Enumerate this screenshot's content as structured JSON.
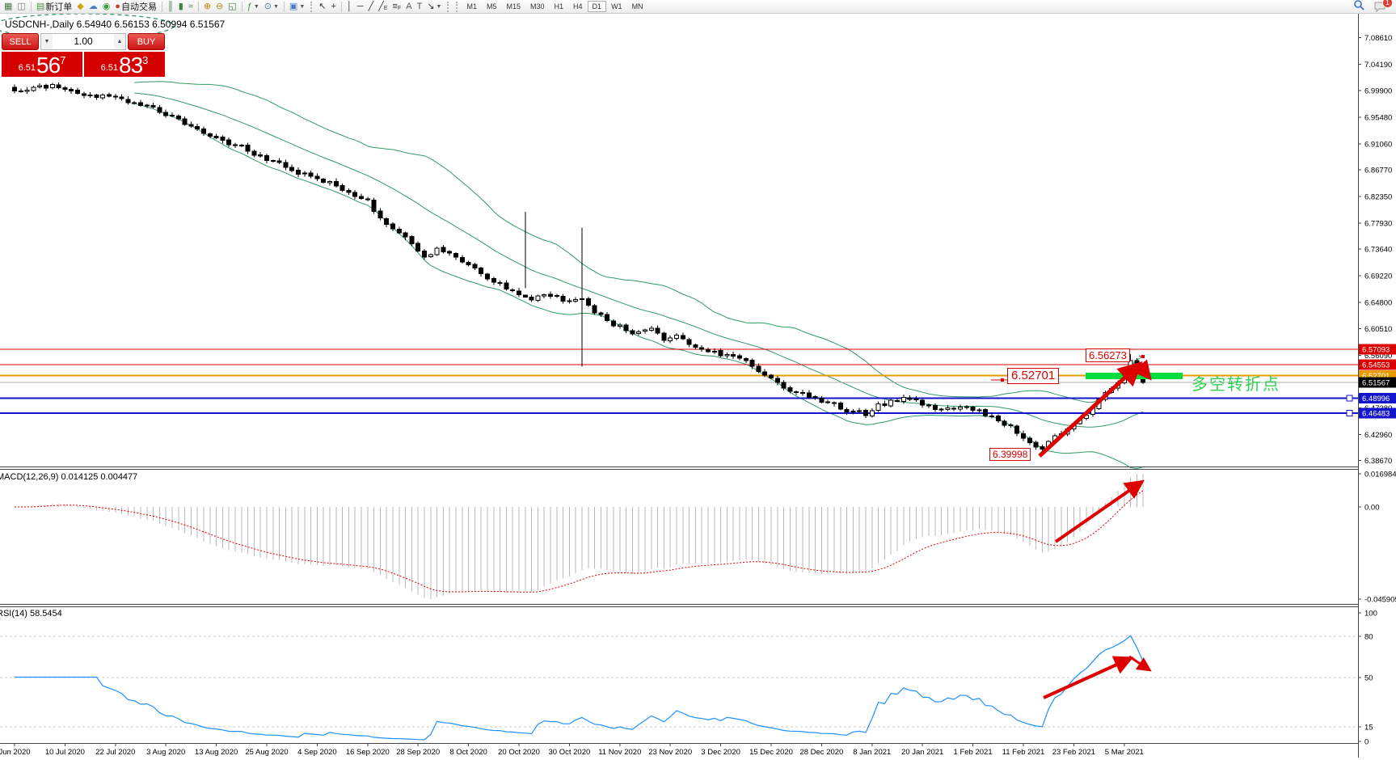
{
  "toolbar": {
    "new_order_label": "新订单",
    "algo_trading_label": "自动交易",
    "notification_count": "1",
    "timeframes": [
      "M1",
      "M5",
      "M15",
      "M30",
      "H1",
      "H4",
      "D1",
      "W1",
      "MN"
    ],
    "active_timeframe": "D1",
    "items": [
      {
        "name": "new-chart",
        "glyph": "▦",
        "color": "#4a7a4a"
      },
      {
        "name": "chart-preview",
        "glyph": "◫",
        "color": "#777777"
      },
      {
        "type": "sep"
      },
      {
        "name": "new-order",
        "glyph": "▤",
        "color": "#3f8f3f",
        "label_key": "new_order_label"
      },
      {
        "name": "depth-of-market",
        "glyph": "◆",
        "color": "#cfa018"
      },
      {
        "name": "virtual-hosting",
        "glyph": "☁",
        "color": "#4a7ac0"
      },
      {
        "name": "signals",
        "glyph": "◉",
        "color": "#38a038"
      },
      {
        "name": "algo-trading",
        "glyph": "●",
        "color": "#c04038",
        "label_key": "algo_trading_label"
      },
      {
        "type": "sep"
      },
      {
        "name": "bars-chart",
        "glyph": "║",
        "color": "#3f7f3f"
      },
      {
        "name": "candles-chart",
        "glyph": "▮",
        "color": "#3f7f3f"
      },
      {
        "name": "line-chart",
        "glyph": "≈",
        "color": "#3f7f3f"
      },
      {
        "type": "sep"
      },
      {
        "name": "zoom-in",
        "glyph": "⊕",
        "color": "#b8860b"
      },
      {
        "name": "zoom-out",
        "glyph": "⊖",
        "color": "#b8860b"
      },
      {
        "name": "tile-windows",
        "glyph": "◱",
        "color": "#3f7f3f"
      },
      {
        "type": "sep"
      },
      {
        "name": "indicators-add",
        "glyph": "ƒ",
        "color": "#3f8f3f",
        "dropdown": true
      },
      {
        "name": "period-clock",
        "glyph": "⊙",
        "color": "#4a7ac0",
        "dropdown": true
      },
      {
        "type": "sep"
      },
      {
        "name": "chart-template",
        "glyph": "▣",
        "color": "#4a7ac0",
        "dropdown": true
      },
      {
        "type": "handle"
      },
      {
        "name": "cursor",
        "glyph": "↖",
        "color": "#333333"
      },
      {
        "name": "crosshair",
        "glyph": "+",
        "color": "#333333"
      },
      {
        "type": "sep"
      },
      {
        "name": "vertical-line",
        "glyph": "│",
        "color": "#333333"
      },
      {
        "name": "horizontal-line",
        "glyph": "─",
        "color": "#333333"
      },
      {
        "name": "trend-line",
        "glyph": "╱",
        "color": "#333333"
      },
      {
        "name": "equidistant-channel",
        "glyph": "╱",
        "color": "#333333",
        "sub": "E"
      },
      {
        "name": "fibonacci",
        "glyph": "≡",
        "color": "#333333",
        "sub": "F"
      },
      {
        "name": "text",
        "glyph": "A",
        "color": "#555555"
      },
      {
        "name": "text-label",
        "glyph": "T",
        "color": "#555555"
      },
      {
        "name": "objects-arrows",
        "glyph": "↘",
        "color": "#333333",
        "dropdown": true
      },
      {
        "type": "handle"
      }
    ]
  },
  "trade_panel": {
    "sell_label": "SELL",
    "buy_label": "BUY",
    "volume": "1.00",
    "down_glyph": "▼",
    "up_glyph": "▲",
    "sell_price_small": "6.51",
    "sell_price_big": "56",
    "sell_price_sup": "7",
    "buy_price_small": "6.51",
    "buy_price_big": "83",
    "buy_price_sup": "3"
  },
  "chart": {
    "title": "USDCNH-,Daily  6.54940 6.56153 6.50994 6.51567",
    "macd_label": "MACD(12,26,9) 0.014125 0.004477",
    "rsi_label": "RSI(14) 58.5454"
  },
  "annotations": {
    "high_label": "6.56273",
    "pivot_label": "6.52701",
    "low_label": "6.39998",
    "pivot_text": "多空转折点",
    "annotation_red": "#dd0000",
    "lime_green": "#00dd3c"
  },
  "chart_data": {
    "type": "candlestick",
    "symbol": "USDCNH-",
    "period": "Daily",
    "current_ohlc": {
      "open": "6.54940",
      "high": "6.56153",
      "low": "6.50994",
      "close": "6.51567"
    },
    "bid": 6.51567,
    "candle_count": 180,
    "price_range": {
      "top": 7.095,
      "bottom": 6.3755
    },
    "anchors": [
      [
        0,
        6.998
      ],
      [
        2,
        6.999
      ],
      [
        6,
        7.008
      ],
      [
        10,
        6.993
      ],
      [
        15,
        6.987
      ],
      [
        19,
        6.979
      ],
      [
        23,
        6.964
      ],
      [
        27,
        6.943
      ],
      [
        32,
        6.92
      ],
      [
        36,
        6.905
      ],
      [
        40,
        6.884
      ],
      [
        44,
        6.869
      ],
      [
        47,
        6.854
      ],
      [
        50,
        6.846
      ],
      [
        53,
        6.832
      ],
      [
        56,
        6.817
      ],
      [
        58,
        6.787
      ],
      [
        61,
        6.766
      ],
      [
        63,
        6.743
      ],
      [
        65,
        6.722
      ],
      [
        67,
        6.737
      ],
      [
        69,
        6.729
      ],
      [
        71,
        6.714
      ],
      [
        73,
        6.707
      ],
      [
        75,
        6.691
      ],
      [
        77,
        6.678
      ],
      [
        80,
        6.662
      ],
      [
        82,
        6.655
      ],
      [
        85,
        6.662
      ],
      [
        88,
        6.647
      ],
      [
        90,
        6.655
      ],
      [
        92,
        6.632
      ],
      [
        94,
        6.618
      ],
      [
        97,
        6.603
      ],
      [
        99,
        6.596
      ],
      [
        101,
        6.603
      ],
      [
        103,
        6.588
      ],
      [
        105,
        6.596
      ],
      [
        107,
        6.581
      ],
      [
        109,
        6.573
      ],
      [
        111,
        6.567
      ],
      [
        113,
        6.559
      ],
      [
        116,
        6.552
      ],
      [
        118,
        6.537
      ],
      [
        120,
        6.522
      ],
      [
        122,
        6.508
      ],
      [
        124,
        6.5
      ],
      [
        126,
        6.493
      ],
      [
        128,
        6.485
      ],
      [
        130,
        6.478
      ],
      [
        132,
        6.47
      ],
      [
        135,
        6.464
      ],
      [
        137,
        6.478
      ],
      [
        139,
        6.485
      ],
      [
        141,
        6.493
      ],
      [
        143,
        6.485
      ],
      [
        145,
        6.478
      ],
      [
        147,
        6.47
      ],
      [
        150,
        6.478
      ],
      [
        152,
        6.47
      ],
      [
        154,
        6.464
      ],
      [
        156,
        6.455
      ],
      [
        158,
        6.441
      ],
      [
        160,
        6.426
      ],
      [
        162,
        6.412
      ],
      [
        163,
        6.405
      ],
      [
        164,
        6.419
      ],
      [
        166,
        6.434
      ],
      [
        168,
        6.449
      ],
      [
        170,
        6.464
      ],
      [
        172,
        6.485
      ],
      [
        174,
        6.508
      ],
      [
        176,
        6.529
      ],
      [
        177,
        6.552
      ],
      [
        178,
        6.537
      ],
      [
        179,
        6.51567
      ]
    ],
    "special_candles": {
      "81": {
        "high": 6.798,
        "low": 6.672
      },
      "90": {
        "high": 6.772,
        "low": 6.542
      },
      "163": {
        "low": 6.39998
      },
      "177": {
        "high": 6.56273
      }
    },
    "bollinger": {
      "period": 20,
      "deviation": 2,
      "color": "#339966"
    },
    "macd": {
      "fast": 12,
      "slow": 26,
      "signal_period": 9,
      "current_main": 0.014125,
      "current_signal": 0.004477,
      "axis": [
        [
          "0.016984",
          586
        ],
        [
          "0.00",
          627
        ],
        [
          "-0.045909",
          741
        ]
      ]
    },
    "rsi": {
      "period": 14,
      "current": 58.5454,
      "axis": [
        [
          "100",
          758
        ],
        [
          "80",
          787
        ],
        [
          "50",
          838
        ],
        [
          "15",
          899
        ],
        [
          "0",
          917
        ]
      ],
      "dashed_levels": [
        787,
        838,
        899
      ]
    },
    "hlines": [
      {
        "price": 6.57093,
        "color": "#dd0000",
        "w": 1
      },
      {
        "price": 6.54553,
        "color": "#dd0000",
        "w": 1
      },
      {
        "price": 6.52701,
        "color": "#e89a00",
        "w": 2
      },
      {
        "price": 6.51567,
        "color": "#ababab",
        "w": 1
      },
      {
        "price": 6.48996,
        "color": "#1414cc",
        "w": 2,
        "handle": true
      },
      {
        "price": 6.46483,
        "color": "#1414cc",
        "w": 2,
        "handle": true
      }
    ],
    "price_ticks": [
      "7.08610",
      "7.04190",
      "6.99900",
      "6.95480",
      "6.91060",
      "6.86770",
      "6.82350",
      "6.77930",
      "6.73640",
      "6.69220",
      "6.64800",
      "6.60510",
      "6.56090",
      "6.47380",
      "6.42960",
      "6.38670"
    ],
    "tagged_prices": [
      {
        "value": "6.57093",
        "price": 6.57093,
        "bg": "#dd0000",
        "fg": "#ffffff"
      },
      {
        "value": "6.54553",
        "price": 6.54553,
        "bg": "#dd0000",
        "fg": "#ffffff"
      },
      {
        "value": "6.52701",
        "price": 6.52701,
        "bg": "#e89a00",
        "fg": "#ffffff"
      },
      {
        "value": "6.51567",
        "price": 6.51567,
        "bg": "#000000",
        "fg": "#ffffff"
      },
      {
        "value": "6.48996",
        "price": 6.48996,
        "bg": "#1414cc",
        "fg": "#ffffff"
      },
      {
        "value": "6.46483",
        "price": 6.46483,
        "bg": "#1414cc",
        "fg": "#ffffff"
      }
    ],
    "x_labels": [
      "Jun 2020",
      "10 Jul 2020",
      "22 Jul 2020",
      "3 Aug 2020",
      "13 Aug 2020",
      "25 Aug 2020",
      "4 Sep 2020",
      "16 Sep 2020",
      "28 Sep 2020",
      "8 Oct 2020",
      "20 Oct 2020",
      "30 Oct 2020",
      "11 Nov 2020",
      "23 Nov 2020",
      "3 Dec 2020",
      "15 Dec 2020",
      "28 Dec 2020",
      "8 Jan 2021",
      "20 Jan 2021",
      "1 Feb 2021",
      "11 Feb 2021",
      "23 Feb 2021",
      "5 Mar 2021"
    ]
  }
}
